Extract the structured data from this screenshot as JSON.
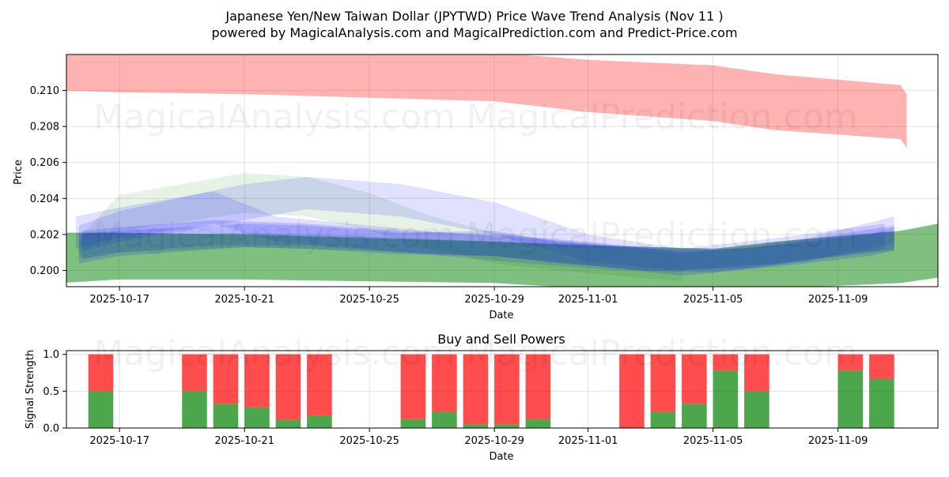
{
  "title_line1": "Japanese Yen/New Taiwan Dollar (JPYTWD) Price Wave Trend Analysis (Nov 11 )",
  "title_line2": "powered by MagicalAnalysis.com and MagicalPrediction.com and Predict-Price.com",
  "watermarks": [
    "MagicalAnalysis.com",
    "MagicalPrediction.com"
  ],
  "chart_data": [
    {
      "type": "area",
      "title": "",
      "xlabel": "Date",
      "ylabel": "Price",
      "x_tick_labels": [
        "2025-10-17",
        "2025-10-21",
        "2025-10-25",
        "2025-10-29",
        "2025-11-01",
        "2025-11-05",
        "2025-11-09"
      ],
      "y_tick_labels": [
        "0.200",
        "0.202",
        "0.204",
        "0.206",
        "0.208",
        "0.210"
      ],
      "ylim": [
        0.1991,
        0.212
      ],
      "x_day_range": [
        -1.7,
        26.2
      ],
      "x_tick_days": [
        0,
        4,
        8,
        12,
        15,
        19,
        23
      ],
      "y_tick_values": [
        0.2,
        0.202,
        0.204,
        0.206,
        0.208,
        0.21
      ],
      "grid": true,
      "series": [
        {
          "name": "upper band (red)",
          "color": "#ff0000",
          "opacity": 0.3,
          "days": [
            -1.95,
            0,
            4,
            8,
            12,
            15,
            19,
            21,
            25,
            25.2
          ],
          "upper": [
            0.2121,
            0.2121,
            0.2121,
            0.2121,
            0.2121,
            0.2117,
            0.2114,
            0.2109,
            0.2103,
            0.2098
          ],
          "lower": [
            0.21,
            0.2099,
            0.2098,
            0.2096,
            0.2094,
            0.2088,
            0.2083,
            0.2078,
            0.2073,
            0.2068
          ]
        },
        {
          "name": "lower band (green)",
          "color": "#008000",
          "opacity": 0.5,
          "days": [
            -1.95,
            0,
            4,
            8,
            12,
            15,
            19,
            21,
            25,
            26.2
          ],
          "upper": [
            0.2021,
            0.2021,
            0.202,
            0.2018,
            0.2016,
            0.2014,
            0.2012,
            0.2016,
            0.2022,
            0.2026
          ],
          "lower": [
            0.1993,
            0.1995,
            0.1995,
            0.1994,
            0.1993,
            0.199,
            0.1987,
            0.199,
            0.1993,
            0.1996
          ]
        },
        {
          "name": "wave A (green light)",
          "color": "#008000",
          "opacity": 0.1,
          "days": [
            -1.2,
            0,
            4,
            6,
            8,
            10,
            12,
            14,
            16,
            18
          ],
          "upper": [
            0.202,
            0.2042,
            0.2054,
            0.2052,
            0.2043,
            0.203,
            0.2021,
            0.2017,
            0.2013,
            0.2008
          ],
          "lower": [
            0.201,
            0.2022,
            0.2032,
            0.203,
            0.2022,
            0.2012,
            0.2004,
            0.2,
            0.1997,
            0.1994
          ]
        },
        {
          "name": "wave B (blue)",
          "color": "#0000ff",
          "opacity": 0.12,
          "days": [
            -1.4,
            0,
            3,
            5,
            8,
            11,
            13,
            16,
            19,
            22,
            24.8
          ],
          "upper": [
            0.203,
            0.2035,
            0.2044,
            0.203,
            0.2025,
            0.202,
            0.2018,
            0.2013,
            0.2011,
            0.2018,
            0.203
          ],
          "lower": [
            0.2012,
            0.2018,
            0.2026,
            0.2016,
            0.2012,
            0.2007,
            0.2004,
            0.2,
            0.1999,
            0.2005,
            0.2015
          ]
        },
        {
          "name": "wave C (blue)",
          "color": "#0000ff",
          "opacity": 0.12,
          "days": [
            -1.3,
            0,
            4,
            6,
            9,
            12,
            15,
            18,
            21,
            24.5
          ],
          "upper": [
            0.2025,
            0.2033,
            0.2048,
            0.2052,
            0.2048,
            0.2038,
            0.202,
            0.2012,
            0.2018,
            0.2026
          ],
          "lower": [
            0.201,
            0.2016,
            0.2028,
            0.2034,
            0.203,
            0.202,
            0.2005,
            0.2,
            0.2004,
            0.2012
          ]
        },
        {
          "name": "wave D (blue)",
          "color": "#0000ff",
          "opacity": 0.15,
          "days": [
            -1.2,
            0,
            3,
            6,
            9,
            12,
            15,
            18,
            21,
            24,
            24.8
          ],
          "upper": [
            0.2022,
            0.2024,
            0.2028,
            0.2026,
            0.2022,
            0.202,
            0.2016,
            0.201,
            0.2014,
            0.202,
            0.2024
          ],
          "lower": [
            0.2006,
            0.201,
            0.2014,
            0.2014,
            0.201,
            0.2008,
            0.2003,
            0.1997,
            0.2002,
            0.2008,
            0.2011
          ]
        },
        {
          "name": "wave E (blue)",
          "color": "#0000ff",
          "opacity": 0.15,
          "days": [
            -1.3,
            0,
            4,
            6,
            9,
            12,
            14,
            17,
            20,
            23,
            24.8
          ],
          "upper": [
            0.202,
            0.2022,
            0.2026,
            0.2025,
            0.2021,
            0.2022,
            0.2016,
            0.2013,
            0.2012,
            0.202,
            0.2025
          ],
          "lower": [
            0.2004,
            0.2008,
            0.2013,
            0.2012,
            0.2009,
            0.2008,
            0.2004,
            0.2,
            0.2001,
            0.2008,
            0.2012
          ]
        },
        {
          "name": "wave F (teal)",
          "color": "#2e7d7d",
          "opacity": 0.3,
          "days": [
            -1.3,
            0,
            4,
            8,
            12,
            15,
            18,
            21,
            24.8
          ],
          "upper": [
            0.2017,
            0.2019,
            0.2021,
            0.2019,
            0.2016,
            0.2013,
            0.2009,
            0.2014,
            0.2021
          ],
          "lower": [
            0.2007,
            0.201,
            0.2013,
            0.2011,
            0.2008,
            0.2004,
            0.2,
            0.2004,
            0.2011
          ]
        }
      ]
    },
    {
      "type": "bar",
      "title": "Buy and Sell Powers",
      "xlabel": "Date",
      "ylabel": "Signal Strength",
      "x_tick_labels": [
        "2025-10-17",
        "2025-10-21",
        "2025-10-25",
        "2025-10-29",
        "2025-11-01",
        "2025-11-05",
        "2025-11-09"
      ],
      "y_tick_labels": [
        "0.0",
        "0.5",
        "1.0"
      ],
      "ylim": [
        0,
        1.05
      ],
      "x_day_range": [
        -1.7,
        26.2
      ],
      "x_tick_days": [
        0,
        4,
        8,
        12,
        15,
        19,
        23
      ],
      "y_tick_values": [
        0,
        0.5,
        1.0
      ],
      "grid": true,
      "buy_color": "#008000",
      "sell_color": "#ff0000",
      "days": [
        -0.6,
        2.4,
        3.4,
        4.4,
        5.4,
        6.4,
        9.4,
        10.4,
        11.4,
        12.4,
        13.4,
        16.4,
        17.4,
        18.4,
        19.4,
        20.4,
        23.4,
        24.4
      ],
      "buy": [
        0.5,
        0.5,
        0.33,
        0.28,
        0.11,
        0.17,
        0.12,
        0.22,
        0.05,
        0.05,
        0.12,
        0.0,
        0.22,
        0.33,
        0.78,
        0.5,
        0.78,
        0.67
      ],
      "sell": [
        0.5,
        0.5,
        0.67,
        0.72,
        0.89,
        0.83,
        0.88,
        0.78,
        0.95,
        0.95,
        0.88,
        1.0,
        0.78,
        0.67,
        0.22,
        0.5,
        0.22,
        0.33
      ]
    }
  ]
}
